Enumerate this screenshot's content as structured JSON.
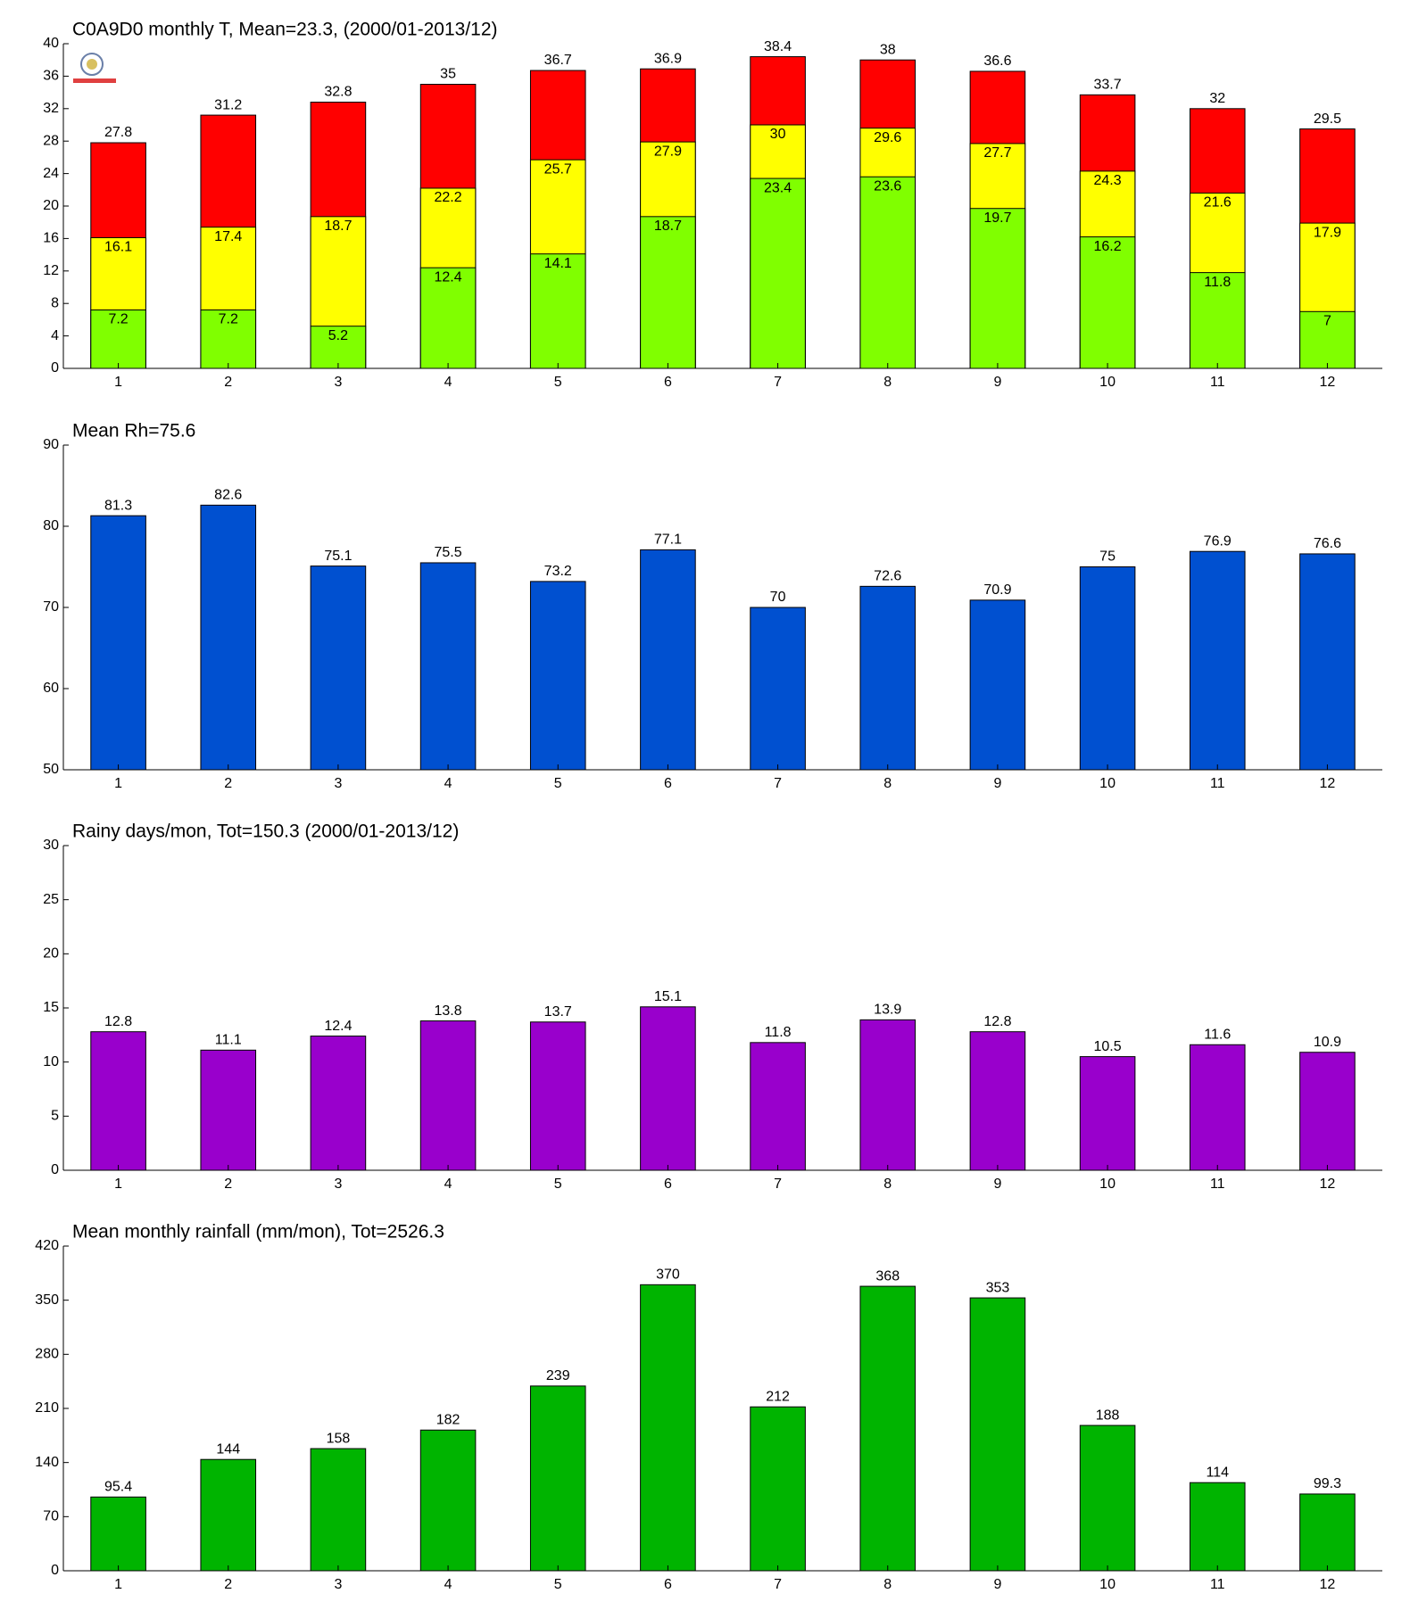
{
  "chart_data": [
    {
      "type": "bar",
      "title": "C0A9D0 monthly T, Mean=23.3, (2000/01-2013/12)",
      "categories": [
        1,
        2,
        3,
        4,
        5,
        6,
        7,
        8,
        9,
        10,
        11,
        12
      ],
      "series": [
        {
          "color": "#ff0000",
          "values": [
            27.8,
            31.2,
            32.8,
            35,
            36.7,
            36.9,
            38.4,
            38,
            36.6,
            33.7,
            32,
            29.5
          ]
        },
        {
          "color": "#ffff00",
          "values": [
            16.1,
            17.4,
            18.7,
            22.2,
            25.7,
            27.9,
            30,
            29.6,
            27.7,
            24.3,
            21.6,
            17.9
          ]
        },
        {
          "color": "#80ff00",
          "values": [
            7.2,
            7.2,
            5.2,
            12.4,
            14.1,
            18.7,
            23.4,
            23.6,
            19.7,
            16.2,
            11.8,
            7
          ]
        }
      ],
      "ylim": [
        0,
        40
      ],
      "yticks": [
        0,
        4,
        8,
        12,
        16,
        20,
        24,
        28,
        32,
        36,
        40
      ]
    },
    {
      "type": "bar",
      "title": "Mean Rh=75.6",
      "categories": [
        1,
        2,
        3,
        4,
        5,
        6,
        7,
        8,
        9,
        10,
        11,
        12
      ],
      "values": [
        81.3,
        82.6,
        75.1,
        75.5,
        73.2,
        77.1,
        70,
        72.6,
        70.9,
        75,
        76.9,
        76.6
      ],
      "color": "#0050d0",
      "ylim": [
        50,
        90
      ],
      "yticks": [
        50,
        60,
        70,
        80,
        90
      ]
    },
    {
      "type": "bar",
      "title": "Rainy days/mon, Tot=150.3 (2000/01-2013/12)",
      "categories": [
        1,
        2,
        3,
        4,
        5,
        6,
        7,
        8,
        9,
        10,
        11,
        12
      ],
      "values": [
        12.8,
        11.1,
        12.4,
        13.8,
        13.7,
        15.1,
        11.8,
        13.9,
        12.8,
        10.5,
        11.6,
        10.9
      ],
      "color": "#9900cc",
      "ylim": [
        0,
        30
      ],
      "yticks": [
        0,
        5,
        10,
        15,
        20,
        25,
        30
      ]
    },
    {
      "type": "bar",
      "title": "Mean monthly rainfall (mm/mon), Tot=2526.3",
      "categories": [
        1,
        2,
        3,
        4,
        5,
        6,
        7,
        8,
        9,
        10,
        11,
        12
      ],
      "values": [
        95.4,
        144,
        158,
        182,
        239,
        370,
        212,
        368,
        353,
        188,
        114,
        99.3
      ],
      "color": "#00b400",
      "ylim": [
        0,
        420
      ],
      "yticks": [
        0,
        70,
        140,
        210,
        280,
        350,
        420
      ]
    }
  ]
}
